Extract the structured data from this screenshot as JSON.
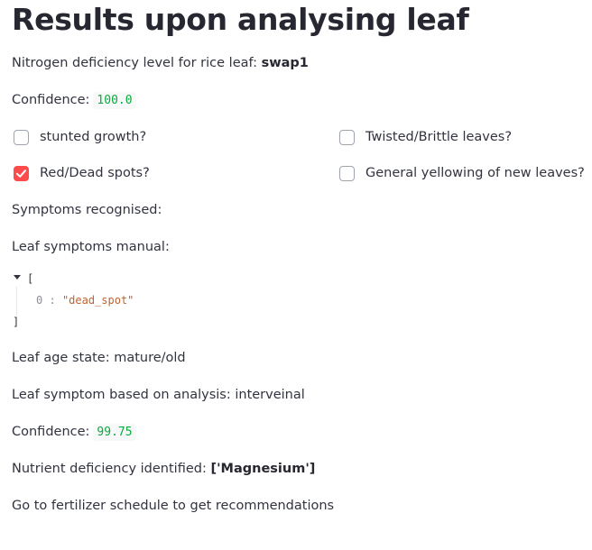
{
  "title": "Results upon analysing leaf",
  "nitrogen": {
    "label": "Nitrogen deficiency level for rice leaf: ",
    "value": "swap1"
  },
  "confidence1": {
    "label": "Confidence:",
    "value": "100.0"
  },
  "checkboxes": [
    {
      "label": "stunted growth?",
      "checked": false
    },
    {
      "label": "Twisted/Brittle leaves?",
      "checked": false
    },
    {
      "label": "Red/Dead spots?",
      "checked": true
    },
    {
      "label": "General yellowing of new leaves?",
      "checked": false
    }
  ],
  "symptoms_recognised": "Symptoms recognised:",
  "leaf_symptoms_manual": "Leaf symptoms manual:",
  "json_view": {
    "open": "[",
    "index": "0",
    "separator": ":",
    "value": "\"dead_spot\"",
    "close": "]"
  },
  "leaf_age": "Leaf age state: mature/old",
  "leaf_symptom_analysis": "Leaf symptom based on analysis: interveinal",
  "confidence2": {
    "label": "Confidence:",
    "value": "99.75"
  },
  "nutrient": {
    "label": "Nutrient deficiency identified: ",
    "value": "['Magnesium']"
  },
  "footer_text": "Go to fertilizer schedule to get recommendations",
  "colors": {
    "accent": "#ff4b4b",
    "code_green": "#09ab3b",
    "json_string": "#c0622e"
  }
}
